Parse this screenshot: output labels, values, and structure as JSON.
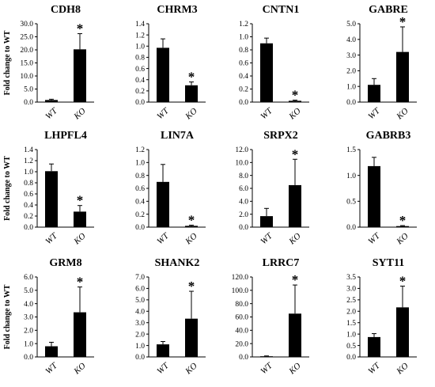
{
  "figure": {
    "y_axis_label": "Fold change to WT"
  },
  "chart_data": [
    {
      "type": "bar",
      "title": "CDH8",
      "categories": [
        "WT",
        "KO"
      ],
      "values": [
        0.8,
        20.2
      ],
      "errors": [
        0.3,
        6.0
      ],
      "significant": [
        false,
        true
      ],
      "significance_marker": "*",
      "ylim": [
        0,
        30
      ],
      "yticks": [
        "0.0",
        "5.0",
        "10.0",
        "15.0",
        "20.0",
        "25.0",
        "30.0"
      ],
      "ylabel": "Fold change to WT"
    },
    {
      "type": "bar",
      "title": "CHRM3",
      "categories": [
        "WT",
        "KO"
      ],
      "values": [
        0.97,
        0.3
      ],
      "errors": [
        0.16,
        0.06
      ],
      "significant": [
        false,
        true
      ],
      "significance_marker": "*",
      "ylim": [
        0,
        1.4
      ],
      "yticks": [
        "0.0",
        "0.2",
        "0.4",
        "0.6",
        "0.8",
        "1.0",
        "1.2",
        "1.4"
      ],
      "ylabel": ""
    },
    {
      "type": "bar",
      "title": "CNTN1",
      "categories": [
        "WT",
        "KO"
      ],
      "values": [
        0.9,
        0.02
      ],
      "errors": [
        0.08,
        0.01
      ],
      "significant": [
        false,
        true
      ],
      "significance_marker": "*",
      "ylim": [
        0,
        1.2
      ],
      "yticks": [
        "0.0",
        "0.2",
        "0.4",
        "0.6",
        "0.8",
        "1.0",
        "1.2"
      ],
      "ylabel": ""
    },
    {
      "type": "bar",
      "title": "GABRE",
      "categories": [
        "WT",
        "KO"
      ],
      "values": [
        1.1,
        3.2
      ],
      "errors": [
        0.4,
        1.6
      ],
      "significant": [
        false,
        true
      ],
      "significance_marker": "*",
      "ylim": [
        0,
        5
      ],
      "yticks": [
        "0.0",
        "1.0",
        "2.0",
        "3.0",
        "4.0",
        "5.0"
      ],
      "ylabel": ""
    },
    {
      "type": "bar",
      "title": "LHPFL4",
      "categories": [
        "WT",
        "KO"
      ],
      "values": [
        1.01,
        0.28
      ],
      "errors": [
        0.13,
        0.11
      ],
      "significant": [
        false,
        true
      ],
      "significance_marker": "*",
      "ylim": [
        0,
        1.4
      ],
      "yticks": [
        "0.0",
        "0.2",
        "0.4",
        "0.6",
        "0.8",
        "1.0",
        "1.2",
        "1.4"
      ],
      "ylabel": "Fold change to WT"
    },
    {
      "type": "bar",
      "title": "LIN7A",
      "categories": [
        "WT",
        "KO"
      ],
      "values": [
        0.7,
        0.02
      ],
      "errors": [
        0.27,
        0.01
      ],
      "significant": [
        false,
        true
      ],
      "significance_marker": "*",
      "ylim": [
        0,
        1.2
      ],
      "yticks": [
        "0.0",
        "0.2",
        "0.4",
        "0.6",
        "0.8",
        "1.0",
        "1.2"
      ],
      "ylabel": ""
    },
    {
      "type": "bar",
      "title": "SRPX2",
      "categories": [
        "WT",
        "KO"
      ],
      "values": [
        1.7,
        6.5
      ],
      "errors": [
        1.2,
        4.0
      ],
      "significant": [
        false,
        true
      ],
      "significance_marker": "*",
      "ylim": [
        0,
        12
      ],
      "yticks": [
        "0.0",
        "2.0",
        "4.0",
        "6.0",
        "8.0",
        "10.0",
        "12.0"
      ],
      "ylabel": ""
    },
    {
      "type": "bar",
      "title": "GABRB3",
      "categories": [
        "WT",
        "KO"
      ],
      "values": [
        1.18,
        0.02
      ],
      "errors": [
        0.17,
        0.01
      ],
      "significant": [
        false,
        true
      ],
      "significance_marker": "*",
      "ylim": [
        0,
        1.5
      ],
      "yticks": [
        "0.0",
        "0.5",
        "1.0",
        "1.5"
      ],
      "ylabel": ""
    },
    {
      "type": "bar",
      "title": "GRM8",
      "categories": [
        "WT",
        "KO"
      ],
      "values": [
        0.8,
        3.35
      ],
      "errors": [
        0.3,
        1.9
      ],
      "significant": [
        false,
        true
      ],
      "significance_marker": "*",
      "ylim": [
        0,
        6
      ],
      "yticks": [
        "0.0",
        "1.0",
        "2.0",
        "3.0",
        "4.0",
        "5.0",
        "6.0"
      ],
      "ylabel": "Fold change to WT"
    },
    {
      "type": "bar",
      "title": "SHANK2",
      "categories": [
        "WT",
        "KO"
      ],
      "values": [
        1.1,
        3.35
      ],
      "errors": [
        0.25,
        2.4
      ],
      "significant": [
        false,
        true
      ],
      "significance_marker": "*",
      "ylim": [
        0,
        7
      ],
      "yticks": [
        "0.0",
        "1.0",
        "2.0",
        "3.0",
        "4.0",
        "5.0",
        "6.0",
        "7.0"
      ],
      "ylabel": ""
    },
    {
      "type": "bar",
      "title": "LRRC7",
      "categories": [
        "WT",
        "KO"
      ],
      "values": [
        1.0,
        65.0
      ],
      "errors": [
        0.5,
        43.0
      ],
      "significant": [
        false,
        true
      ],
      "significance_marker": "*",
      "ylim": [
        0,
        120
      ],
      "yticks": [
        "0.0",
        "20.0",
        "40.0",
        "60.0",
        "80.0",
        "100.0",
        "120.0"
      ],
      "ylabel": ""
    },
    {
      "type": "bar",
      "title": "SYT11",
      "categories": [
        "WT",
        "KO"
      ],
      "values": [
        0.87,
        2.17
      ],
      "errors": [
        0.15,
        0.93
      ],
      "significant": [
        false,
        true
      ],
      "significance_marker": "*",
      "ylim": [
        0,
        3.5
      ],
      "yticks": [
        "0.0",
        "0.5",
        "1.0",
        "1.5",
        "2.0",
        "2.5",
        "3.0",
        "3.5"
      ],
      "ylabel": ""
    }
  ]
}
